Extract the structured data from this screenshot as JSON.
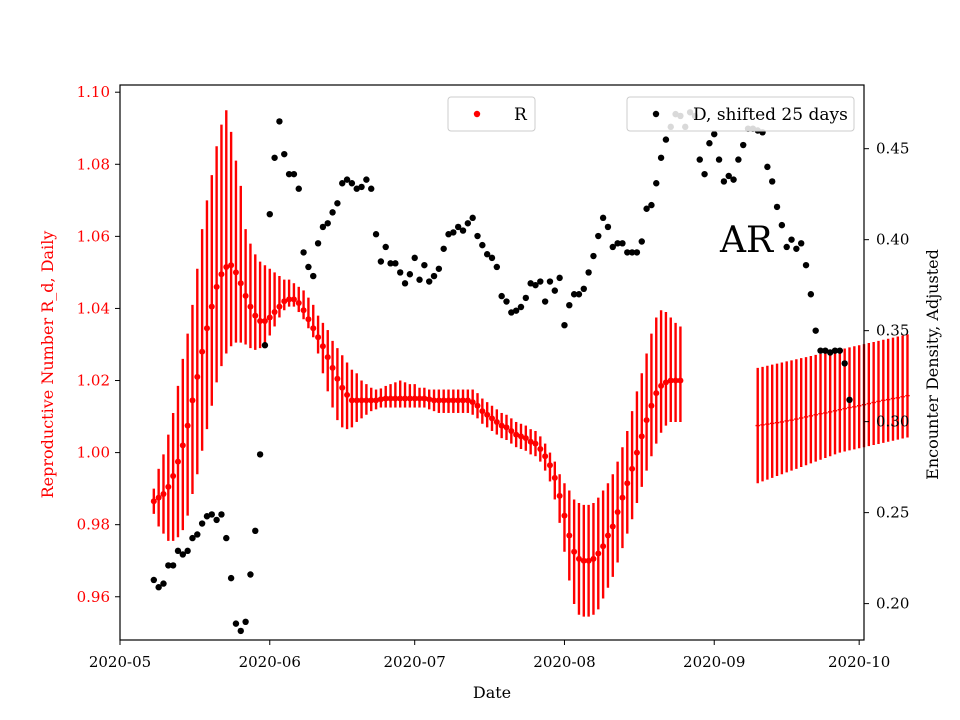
{
  "chart_data": {
    "type": "scatter",
    "xlabel": "Date",
    "ylabel_left": "Reproductive Number R_d, Daily",
    "ylabel_right": "Encounter Density, Adjusted",
    "annotation": "AR",
    "colors": {
      "left_axis": "#ff0000",
      "R": "#ff0000",
      "D": "#000000",
      "frame": "#000000"
    },
    "legend": {
      "R_label": "R",
      "D_label": "D, shifted 25 days",
      "placement": "top-center and top-right"
    },
    "grid": false,
    "xlim": [
      "2020-05-01",
      "2020-10-02"
    ],
    "ylim_left": [
      0.948,
      1.102
    ],
    "ylim_right": [
      0.18,
      0.485
    ],
    "x_ticks": [
      {
        "date": "2020-05-01",
        "label": "2020-05"
      },
      {
        "date": "2020-06-01",
        "label": "2020-06"
      },
      {
        "date": "2020-07-01",
        "label": "2020-07"
      },
      {
        "date": "2020-08-01",
        "label": "2020-08"
      },
      {
        "date": "2020-09-01",
        "label": "2020-09"
      },
      {
        "date": "2020-10-01",
        "label": "2020-10"
      }
    ],
    "y_ticks_left": [
      {
        "value": 0.96,
        "label": "0.96"
      },
      {
        "value": 0.98,
        "label": "0.98"
      },
      {
        "value": 1.0,
        "label": "1.00"
      },
      {
        "value": 1.02,
        "label": "1.02"
      },
      {
        "value": 1.04,
        "label": "1.04"
      },
      {
        "value": 1.06,
        "label": "1.06"
      },
      {
        "value": 1.08,
        "label": "1.08"
      },
      {
        "value": 1.1,
        "label": "1.10"
      }
    ],
    "y_ticks_right": [
      {
        "value": 0.2,
        "label": "0.20"
      },
      {
        "value": 0.25,
        "label": "0.25"
      },
      {
        "value": 0.3,
        "label": "0.30"
      },
      {
        "value": 0.35,
        "label": "0.35"
      },
      {
        "value": 0.4,
        "label": "0.40"
      },
      {
        "value": 0.45,
        "label": "0.45"
      }
    ],
    "R_series": {
      "start_date": "2020-05-08",
      "values": [
        0.9865,
        0.9875,
        0.9885,
        0.9905,
        0.9935,
        0.9975,
        1.002,
        1.0075,
        1.0145,
        1.021,
        1.028,
        1.0345,
        1.0405,
        1.046,
        1.0495,
        1.0515,
        1.052,
        1.05,
        1.047,
        1.0435,
        1.0405,
        1.038,
        1.0365,
        1.0365,
        1.0375,
        1.039,
        1.0405,
        1.042,
        1.0425,
        1.0425,
        1.0415,
        1.0395,
        1.037,
        1.0345,
        1.032,
        1.0295,
        1.0265,
        1.0235,
        1.0205,
        1.018,
        1.016,
        1.0145,
        1.0145,
        1.0145,
        1.0145,
        1.0145,
        1.0145,
        1.0148,
        1.015,
        1.015,
        1.015,
        1.015,
        1.015,
        1.015,
        1.015,
        1.015,
        1.015,
        1.0148,
        1.0145,
        1.0145,
        1.0145,
        1.0145,
        1.0145,
        1.0145,
        1.0145,
        1.0145,
        1.014,
        1.013,
        1.0115,
        1.0105,
        1.0095,
        1.0085,
        1.0075,
        1.007,
        1.006,
        1.005,
        1.0045,
        1.004,
        1.003,
        1.0025,
        1.001,
        0.999,
        0.9965,
        0.993,
        0.988,
        0.9825,
        0.977,
        0.9725,
        0.9705,
        0.97,
        0.97,
        0.9705,
        0.972,
        0.974,
        0.977,
        0.9795,
        0.9835,
        0.9875,
        0.9915,
        0.9955,
        1.0,
        1.0045,
        1.009,
        1.013,
        1.0165,
        1.0185,
        1.0195,
        1.02,
        1.02,
        1.02
      ],
      "lower": [
        0.983,
        0.9795,
        0.9775,
        0.9755,
        0.9755,
        0.9765,
        0.9785,
        0.9825,
        0.9885,
        0.994,
        1.0005,
        1.0065,
        1.013,
        1.0195,
        1.024,
        1.0275,
        1.0295,
        1.0305,
        1.0305,
        1.03,
        1.029,
        1.0285,
        1.029,
        1.03,
        1.0325,
        1.035,
        1.0375,
        1.0395,
        1.0405,
        1.0405,
        1.039,
        1.037,
        1.0345,
        1.032,
        1.0275,
        1.022,
        1.017,
        1.0125,
        1.009,
        1.007,
        1.0065,
        1.007,
        1.0085,
        1.0095,
        1.0105,
        1.0115,
        1.012,
        1.0125,
        1.0125,
        1.0125,
        1.0125,
        1.0125,
        1.0125,
        1.0125,
        1.0125,
        1.0125,
        1.0125,
        1.012,
        1.0115,
        1.011,
        1.011,
        1.011,
        1.011,
        1.011,
        1.011,
        1.011,
        1.0105,
        1.0095,
        1.008,
        1.007,
        1.006,
        1.005,
        1.004,
        1.0035,
        1.0025,
        1.0015,
        1.001,
        1.0005,
        0.9995,
        0.999,
        0.9975,
        0.995,
        0.992,
        0.987,
        0.9805,
        0.9725,
        0.9645,
        0.958,
        0.955,
        0.9545,
        0.9545,
        0.955,
        0.9565,
        0.9595,
        0.9625,
        0.9655,
        0.9695,
        0.9735,
        0.9775,
        0.9815,
        0.986,
        0.9905,
        0.995,
        0.999,
        1.0025,
        1.0055,
        1.0075,
        1.0085,
        1.0085,
        1.0085
      ],
      "upper": [
        0.99,
        0.9955,
        0.9995,
        1.005,
        1.011,
        1.0185,
        1.026,
        1.033,
        1.041,
        1.051,
        1.062,
        1.07,
        1.077,
        1.085,
        1.091,
        1.095,
        1.089,
        1.081,
        1.074,
        1.062,
        1.058,
        1.055,
        1.053,
        1.052,
        1.051,
        1.05,
        1.049,
        1.048,
        1.048,
        1.047,
        1.046,
        1.045,
        1.043,
        1.041,
        1.038,
        1.036,
        1.034,
        1.031,
        1.029,
        1.027,
        1.025,
        1.023,
        1.022,
        1.02,
        1.019,
        1.018,
        1.0175,
        1.0178,
        1.0185,
        1.019,
        1.0195,
        1.02,
        1.0195,
        1.019,
        1.019,
        1.018,
        1.018,
        1.0175,
        1.0175,
        1.0175,
        1.0175,
        1.0175,
        1.0175,
        1.0175,
        1.0175,
        1.0175,
        1.0175,
        1.0165,
        1.015,
        1.014,
        1.013,
        1.012,
        1.011,
        1.0105,
        1.0095,
        1.0085,
        1.008,
        1.0075,
        1.0065,
        1.006,
        1.0045,
        1.0025,
        1.0,
        0.9975,
        0.994,
        0.9915,
        0.9895,
        0.987,
        0.986,
        0.9855,
        0.9855,
        0.986,
        0.9875,
        0.9895,
        0.9915,
        0.994,
        0.9975,
        1.0015,
        1.006,
        1.0115,
        1.017,
        1.022,
        1.0275,
        1.033,
        1.0375,
        1.0395,
        1.039,
        1.0375,
        1.036,
        1.035
      ]
    },
    "R_tail": {
      "start_date": "2020-09-10",
      "values": [
        1.0075,
        1.0077,
        1.0079,
        1.0081,
        1.0083,
        1.0085,
        1.0088,
        1.009,
        1.0093,
        1.0096,
        1.0099,
        1.0102,
        1.0105,
        1.0108,
        1.011,
        1.0113,
        1.0116,
        1.0119,
        1.0122,
        1.0125,
        1.0127,
        1.013,
        1.0133,
        1.0136,
        1.0139,
        1.0142,
        1.0145,
        1.0147,
        1.015,
        1.0152,
        1.0155,
        1.0158
      ],
      "lower": [
        0.9915,
        0.992,
        0.9925,
        0.993,
        0.9935,
        0.994,
        0.9945,
        0.995,
        0.9955,
        0.996,
        0.9965,
        0.997,
        0.9975,
        0.998,
        0.9985,
        0.999,
        0.9995,
        1.0,
        1.0003,
        1.0006,
        1.0009,
        1.0012,
        1.0015,
        1.0018,
        1.0021,
        1.0024,
        1.0027,
        1.003,
        1.0033,
        1.0036,
        1.0039,
        1.0042
      ],
      "upper": [
        1.0235,
        1.0238,
        1.0241,
        1.0244,
        1.0247,
        1.025,
        1.0253,
        1.0256,
        1.0259,
        1.0262,
        1.0265,
        1.0268,
        1.0271,
        1.0274,
        1.0277,
        1.028,
        1.0283,
        1.0286,
        1.0289,
        1.0292,
        1.0295,
        1.0298,
        1.0301,
        1.0304,
        1.0307,
        1.031,
        1.0313,
        1.0316,
        1.0319,
        1.0322,
        1.0325,
        1.0328
      ]
    },
    "D_series": [
      [
        "2020-05-08",
        0.213
      ],
      [
        "2020-05-09",
        0.209
      ],
      [
        "2020-05-10",
        0.211
      ],
      [
        "2020-05-11",
        0.221
      ],
      [
        "2020-05-12",
        0.221
      ],
      [
        "2020-05-13",
        0.229
      ],
      [
        "2020-05-14",
        0.227
      ],
      [
        "2020-05-15",
        0.229
      ],
      [
        "2020-05-16",
        0.236
      ],
      [
        "2020-05-17",
        0.238
      ],
      [
        "2020-05-18",
        0.244
      ],
      [
        "2020-05-19",
        0.248
      ],
      [
        "2020-05-20",
        0.249
      ],
      [
        "2020-05-21",
        0.246
      ],
      [
        "2020-05-22",
        0.249
      ],
      [
        "2020-05-23",
        0.236
      ],
      [
        "2020-05-24",
        0.214
      ],
      [
        "2020-05-25",
        0.189
      ],
      [
        "2020-05-26",
        0.185
      ],
      [
        "2020-05-27",
        0.19
      ],
      [
        "2020-05-28",
        0.216
      ],
      [
        "2020-05-29",
        0.24
      ],
      [
        "2020-05-30",
        0.282
      ],
      [
        "2020-05-31",
        0.342
      ],
      [
        "2020-06-01",
        0.414
      ],
      [
        "2020-06-02",
        0.445
      ],
      [
        "2020-06-03",
        0.465
      ],
      [
        "2020-06-04",
        0.447
      ],
      [
        "2020-06-05",
        0.436
      ],
      [
        "2020-06-06",
        0.436
      ],
      [
        "2020-06-07",
        0.428
      ],
      [
        "2020-06-08",
        0.393
      ],
      [
        "2020-06-09",
        0.385
      ],
      [
        "2020-06-10",
        0.38
      ],
      [
        "2020-06-11",
        0.398
      ],
      [
        "2020-06-12",
        0.407
      ],
      [
        "2020-06-13",
        0.409
      ],
      [
        "2020-06-14",
        0.415
      ],
      [
        "2020-06-15",
        0.42
      ],
      [
        "2020-06-16",
        0.431
      ],
      [
        "2020-06-17",
        0.433
      ],
      [
        "2020-06-18",
        0.431
      ],
      [
        "2020-06-19",
        0.428
      ],
      [
        "2020-06-20",
        0.429
      ],
      [
        "2020-06-21",
        0.433
      ],
      [
        "2020-06-22",
        0.428
      ],
      [
        "2020-06-23",
        0.403
      ],
      [
        "2020-06-24",
        0.388
      ],
      [
        "2020-06-25",
        0.396
      ],
      [
        "2020-06-26",
        0.387
      ],
      [
        "2020-06-27",
        0.387
      ],
      [
        "2020-06-28",
        0.382
      ],
      [
        "2020-06-29",
        0.376
      ],
      [
        "2020-06-30",
        0.381
      ],
      [
        "2020-07-01",
        0.39
      ],
      [
        "2020-07-02",
        0.378
      ],
      [
        "2020-07-03",
        0.386
      ],
      [
        "2020-07-04",
        0.377
      ],
      [
        "2020-07-05",
        0.38
      ],
      [
        "2020-07-06",
        0.384
      ],
      [
        "2020-07-07",
        0.395
      ],
      [
        "2020-07-08",
        0.403
      ],
      [
        "2020-07-09",
        0.404
      ],
      [
        "2020-07-10",
        0.407
      ],
      [
        "2020-07-11",
        0.405
      ],
      [
        "2020-07-12",
        0.409
      ],
      [
        "2020-07-13",
        0.412
      ],
      [
        "2020-07-14",
        0.402
      ],
      [
        "2020-07-15",
        0.397
      ],
      [
        "2020-07-16",
        0.392
      ],
      [
        "2020-07-17",
        0.39
      ],
      [
        "2020-07-18",
        0.385
      ],
      [
        "2020-07-19",
        0.369
      ],
      [
        "2020-07-20",
        0.366
      ],
      [
        "2020-07-21",
        0.36
      ],
      [
        "2020-07-22",
        0.361
      ],
      [
        "2020-07-23",
        0.363
      ],
      [
        "2020-07-24",
        0.368
      ],
      [
        "2020-07-25",
        0.376
      ],
      [
        "2020-07-26",
        0.375
      ],
      [
        "2020-07-27",
        0.377
      ],
      [
        "2020-07-28",
        0.366
      ],
      [
        "2020-07-29",
        0.377
      ],
      [
        "2020-07-30",
        0.372
      ],
      [
        "2020-07-31",
        0.379
      ],
      [
        "2020-08-01",
        0.353
      ],
      [
        "2020-08-02",
        0.364
      ],
      [
        "2020-08-03",
        0.37
      ],
      [
        "2020-08-04",
        0.37
      ],
      [
        "2020-08-05",
        0.373
      ],
      [
        "2020-08-06",
        0.382
      ],
      [
        "2020-08-07",
        0.391
      ],
      [
        "2020-08-08",
        0.402
      ],
      [
        "2020-08-09",
        0.412
      ],
      [
        "2020-08-10",
        0.407
      ],
      [
        "2020-08-11",
        0.396
      ],
      [
        "2020-08-12",
        0.398
      ],
      [
        "2020-08-13",
        0.398
      ],
      [
        "2020-08-14",
        0.393
      ],
      [
        "2020-08-15",
        0.393
      ],
      [
        "2020-08-16",
        0.393
      ],
      [
        "2020-08-17",
        0.399
      ],
      [
        "2020-08-18",
        0.417
      ],
      [
        "2020-08-19",
        0.419
      ],
      [
        "2020-08-20",
        0.431
      ],
      [
        "2020-08-21",
        0.445
      ],
      [
        "2020-08-22",
        0.455
      ],
      [
        "2020-08-23",
        0.462
      ],
      [
        "2020-08-24",
        0.469
      ],
      [
        "2020-08-25",
        0.468
      ],
      [
        "2020-08-26",
        0.462
      ],
      [
        "2020-08-27",
        0.47
      ],
      [
        "2020-08-28",
        0.468
      ],
      [
        "2020-08-29",
        0.444
      ],
      [
        "2020-08-30",
        0.436
      ],
      [
        "2020-08-31",
        0.453
      ],
      [
        "2020-09-01",
        0.458
      ],
      [
        "2020-09-02",
        0.444
      ],
      [
        "2020-09-03",
        0.432
      ],
      [
        "2020-09-04",
        0.435
      ],
      [
        "2020-09-05",
        0.433
      ],
      [
        "2020-09-06",
        0.444
      ],
      [
        "2020-09-07",
        0.452
      ],
      [
        "2020-09-08",
        0.461
      ],
      [
        "2020-09-09",
        0.461
      ],
      [
        "2020-09-10",
        0.46
      ],
      [
        "2020-09-11",
        0.459
      ],
      [
        "2020-09-12",
        0.44
      ],
      [
        "2020-09-13",
        0.432
      ],
      [
        "2020-09-14",
        0.418
      ],
      [
        "2020-09-15",
        0.408
      ],
      [
        "2020-09-16",
        0.396
      ],
      [
        "2020-09-17",
        0.4
      ],
      [
        "2020-09-18",
        0.395
      ],
      [
        "2020-09-19",
        0.398
      ],
      [
        "2020-09-20",
        0.386
      ],
      [
        "2020-09-21",
        0.37
      ],
      [
        "2020-09-22",
        0.35
      ],
      [
        "2020-09-23",
        0.339
      ],
      [
        "2020-09-24",
        0.339
      ],
      [
        "2020-09-25",
        0.338
      ],
      [
        "2020-09-26",
        0.339
      ],
      [
        "2020-09-27",
        0.339
      ],
      [
        "2020-09-28",
        0.332
      ],
      [
        "2020-09-29",
        0.312
      ]
    ]
  }
}
